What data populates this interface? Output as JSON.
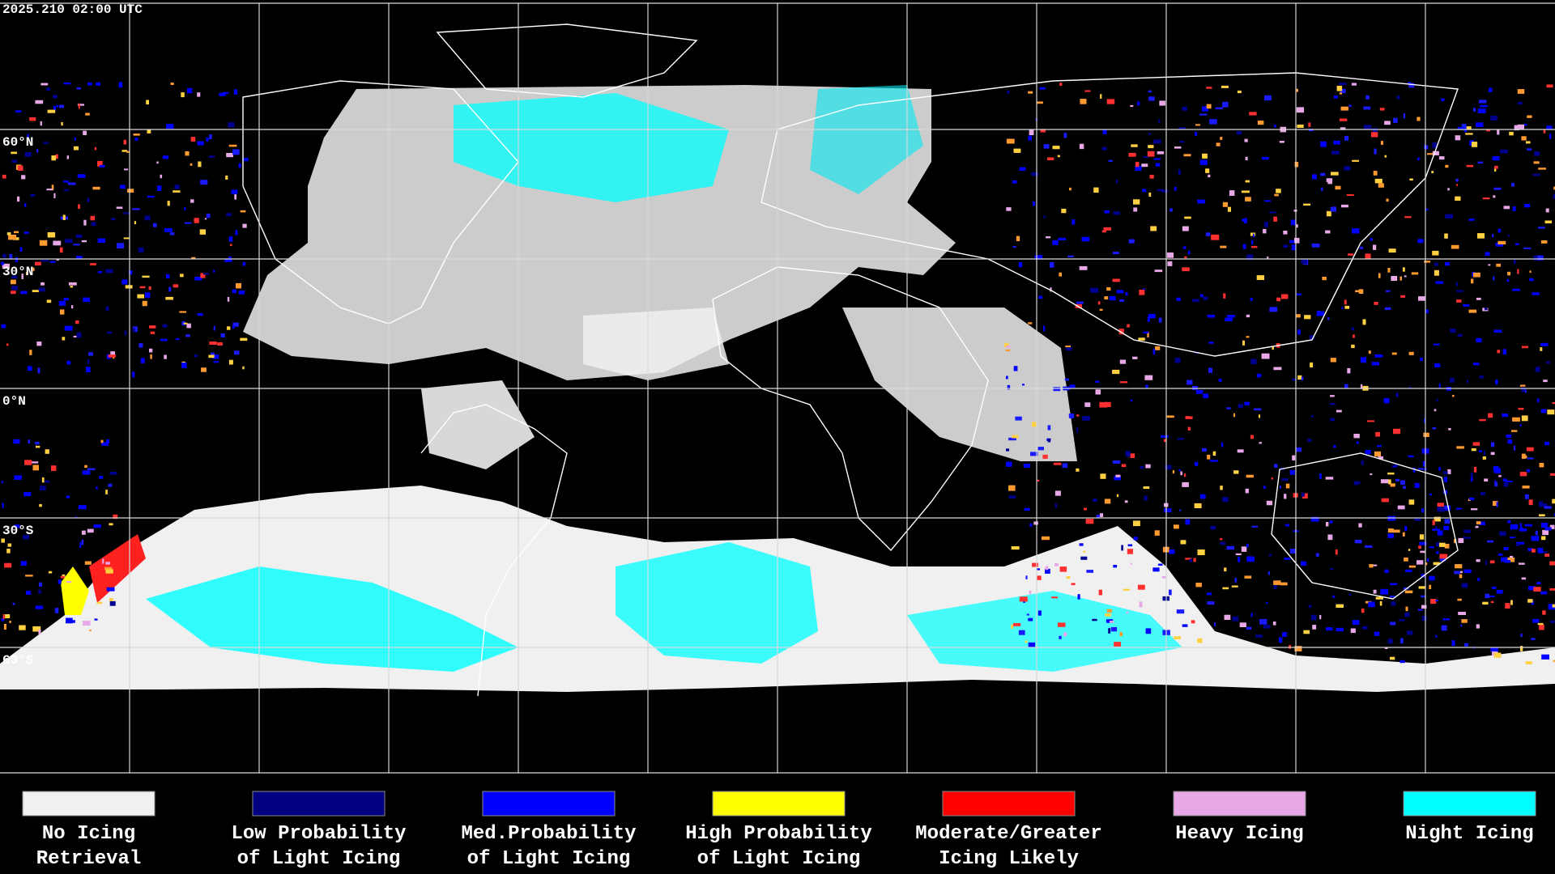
{
  "header": {
    "timestamp": "2025.210 02:00 UTC"
  },
  "map": {
    "latitude_labels": [
      "60°N",
      "30°N",
      "0°N",
      "30°S",
      "60°S"
    ]
  },
  "legend": {
    "items": [
      {
        "label_lines": [
          "No Icing",
          "Retrieval"
        ],
        "color": "#f0f0f0"
      },
      {
        "label_lines": [
          "Low Probability",
          "of Light Icing"
        ],
        "color": "#000080"
      },
      {
        "label_lines": [
          "Med.Probability",
          "of Light Icing"
        ],
        "color": "#0000ff"
      },
      {
        "label_lines": [
          "High Probability",
          "of Light Icing"
        ],
        "color": "#ffff00"
      },
      {
        "label_lines": [
          "Moderate/Greater",
          "Icing Likely"
        ],
        "color": "#ff0000"
      },
      {
        "label_lines": [
          "Heavy Icing"
        ],
        "color": "#e8a8e8"
      },
      {
        "label_lines": [
          "Night Icing"
        ],
        "color": "#00ffff"
      }
    ]
  }
}
